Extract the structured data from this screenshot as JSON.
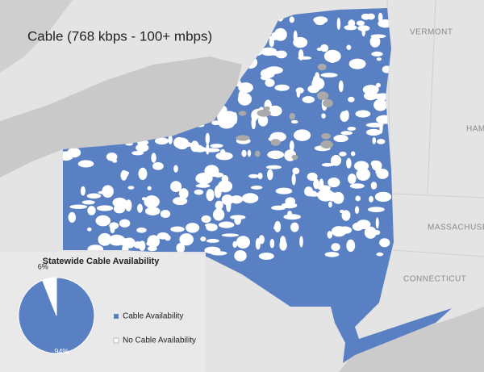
{
  "map": {
    "title": "Cable (768 kbps - 100+ mbps)",
    "labels": [
      "VERMONT",
      "HAM",
      "MASSACHUSE",
      "CONNECTICUT"
    ]
  },
  "chart_data": {
    "type": "pie",
    "title": "Statewide Cable Availability",
    "categories": [
      "Cable Availability",
      "No Cable Availability"
    ],
    "values": [
      94,
      6
    ],
    "value_labels": [
      "94%",
      "6%"
    ],
    "colors": [
      "#5a80c4",
      "#ffffff"
    ]
  }
}
